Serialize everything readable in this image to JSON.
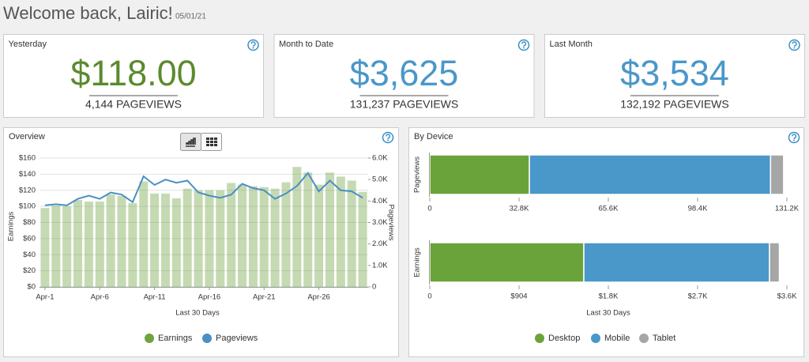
{
  "header": {
    "title": "Welcome back, Lairic!",
    "date": "05/01/21"
  },
  "cards": [
    {
      "label": "Yesterday",
      "value": "$118.00",
      "pageviews": "4,144 PAGEVIEWS",
      "color": "#5b8a2e"
    },
    {
      "label": "Month to Date",
      "value": "$3,625",
      "pageviews": "131,237 PAGEVIEWS",
      "color": "#4a97c9"
    },
    {
      "label": "Last Month",
      "value": "$3,534",
      "pageviews": "132,192 PAGEVIEWS",
      "color": "#4a97c9"
    }
  ],
  "chart_data": [
    {
      "type": "bar_line",
      "title": "Overview",
      "categories": [
        "Apr-1",
        null,
        null,
        null,
        null,
        "Apr-6",
        null,
        null,
        null,
        null,
        "Apr-11",
        null,
        null,
        null,
        null,
        "Apr-16",
        null,
        null,
        null,
        null,
        "Apr-21",
        null,
        null,
        null,
        null,
        "Apr-26",
        null,
        null,
        null,
        null
      ],
      "series": [
        {
          "name": "Earnings",
          "color": "#6fa33f",
          "values": [
            98,
            101,
            100,
            108,
            106,
            106,
            115,
            113,
            104,
            131,
            116,
            116,
            110,
            122,
            120,
            120,
            120,
            129,
            127,
            125,
            124,
            122,
            130,
            149,
            142,
            127,
            142,
            137,
            132,
            118
          ]
        },
        {
          "name": "Pageviews",
          "color": "#4a90c4",
          "axis": "y2",
          "values": [
            3800,
            3850,
            3800,
            4100,
            4250,
            4100,
            4400,
            4300,
            3950,
            5150,
            4750,
            5000,
            4850,
            4950,
            4400,
            4250,
            4150,
            4300,
            4800,
            4600,
            4500,
            4100,
            4350,
            4700,
            5300,
            4450,
            4950,
            4500,
            4450,
            4150
          ]
        }
      ],
      "ylabel": "Earnings",
      "y2label": "Pageviews",
      "xlabel": "Last 30 Days",
      "ylim": [
        0,
        160
      ],
      "yticks": [
        {
          "value": 0,
          "label": "$0"
        },
        {
          "value": 20,
          "label": "$20"
        },
        {
          "value": 40,
          "label": "$40"
        },
        {
          "value": 60,
          "label": "$60"
        },
        {
          "value": 80,
          "label": "$80"
        },
        {
          "value": 100,
          "label": "$100"
        },
        {
          "value": 120,
          "label": "$120"
        },
        {
          "value": 140,
          "label": "$140"
        },
        {
          "value": 160,
          "label": "$160"
        }
      ],
      "y2lim": [
        0,
        6000
      ],
      "y2ticks": [
        0,
        {
          "value": 1000,
          "label": "1.0K"
        },
        {
          "value": 2000,
          "label": "2.0K"
        },
        {
          "value": 3000,
          "label": "3.0K"
        },
        {
          "value": 4000,
          "label": "4.0K"
        },
        {
          "value": 5000,
          "label": "5.0K"
        },
        {
          "value": 6000,
          "label": "6.0K"
        }
      ],
      "grid": true
    },
    {
      "type": "stacked_hbar",
      "title": "By Device",
      "ylabel": "Pageviews",
      "series": [
        {
          "color": "#6aa33a",
          "values": [
            36600
          ]
        },
        {
          "color": "#4a97c9",
          "values": [
            88600
          ]
        },
        {
          "color": "#a6a6a6",
          "values": [
            4800
          ]
        }
      ],
      "xlim": [
        0,
        131200
      ],
      "xticks": [
        0,
        {
          "value": 32800,
          "label": "32.8K"
        },
        {
          "value": 65600,
          "label": "65.6K"
        },
        {
          "value": 98400,
          "label": "98.4K"
        },
        {
          "value": 131200,
          "label": "131.2K"
        }
      ]
    },
    {
      "type": "stacked_hbar",
      "ylabel": "Earnings",
      "xlabel": "Last 30 Days",
      "series": [
        {
          "name": "Desktop",
          "color": "#6aa33a",
          "values": [
            1560
          ]
        },
        {
          "name": "Mobile",
          "color": "#4a97c9",
          "values": [
            1880
          ]
        },
        {
          "name": "Tablet",
          "color": "#a6a6a6",
          "values": [
            100
          ]
        }
      ],
      "xlim": [
        0,
        3616
      ],
      "xticks": [
        0,
        {
          "value": 904,
          "label": "$904"
        },
        {
          "value": 1808,
          "label": "$1.8K"
        },
        {
          "value": 2712,
          "label": "$2.7K"
        },
        {
          "value": 3616,
          "label": "$3.6K"
        }
      ]
    }
  ]
}
